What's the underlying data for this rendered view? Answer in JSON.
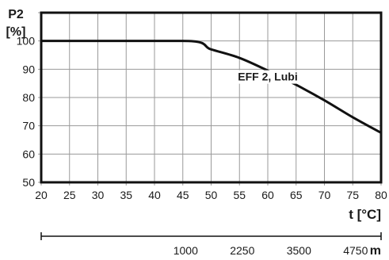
{
  "chart_data": {
    "type": "line",
    "ylabel_line1": "P2",
    "ylabel_line2": "[%]",
    "xlabel": "t [°C]",
    "xlim": [
      20,
      80
    ],
    "ylim": [
      50,
      110
    ],
    "x_ticks": [
      20,
      25,
      30,
      35,
      40,
      45,
      50,
      55,
      60,
      65,
      70,
      75,
      80
    ],
    "y_ticks": [
      50,
      60,
      70,
      80,
      90,
      100
    ],
    "x_tick_labels": [
      "20",
      "25",
      "30",
      "35",
      "40",
      "45",
      "50",
      "55",
      "60",
      "65",
      "70",
      "75",
      "80"
    ],
    "y_tick_labels": [
      "50",
      "60",
      "70",
      "80",
      "90",
      "100"
    ],
    "grid": true,
    "series": [
      {
        "name": "EFF 2, Lubi",
        "x": [
          20,
          45,
          50,
          55,
          60,
          65,
          70,
          75,
          80
        ],
        "y": [
          100,
          100,
          97,
          94,
          89.5,
          84.5,
          79,
          73,
          67.5
        ]
      }
    ],
    "annotation": {
      "text": "EFF 2, Lubi",
      "x": 60,
      "y": 86
    },
    "secondary_axis": {
      "unit": "m",
      "ticks": [
        {
          "label": "1000",
          "t": 45.5
        },
        {
          "label": "2250",
          "t": 55.5
        },
        {
          "label": "3500",
          "t": 65.5
        },
        {
          "label": "4750",
          "t": 75.5
        }
      ]
    }
  }
}
